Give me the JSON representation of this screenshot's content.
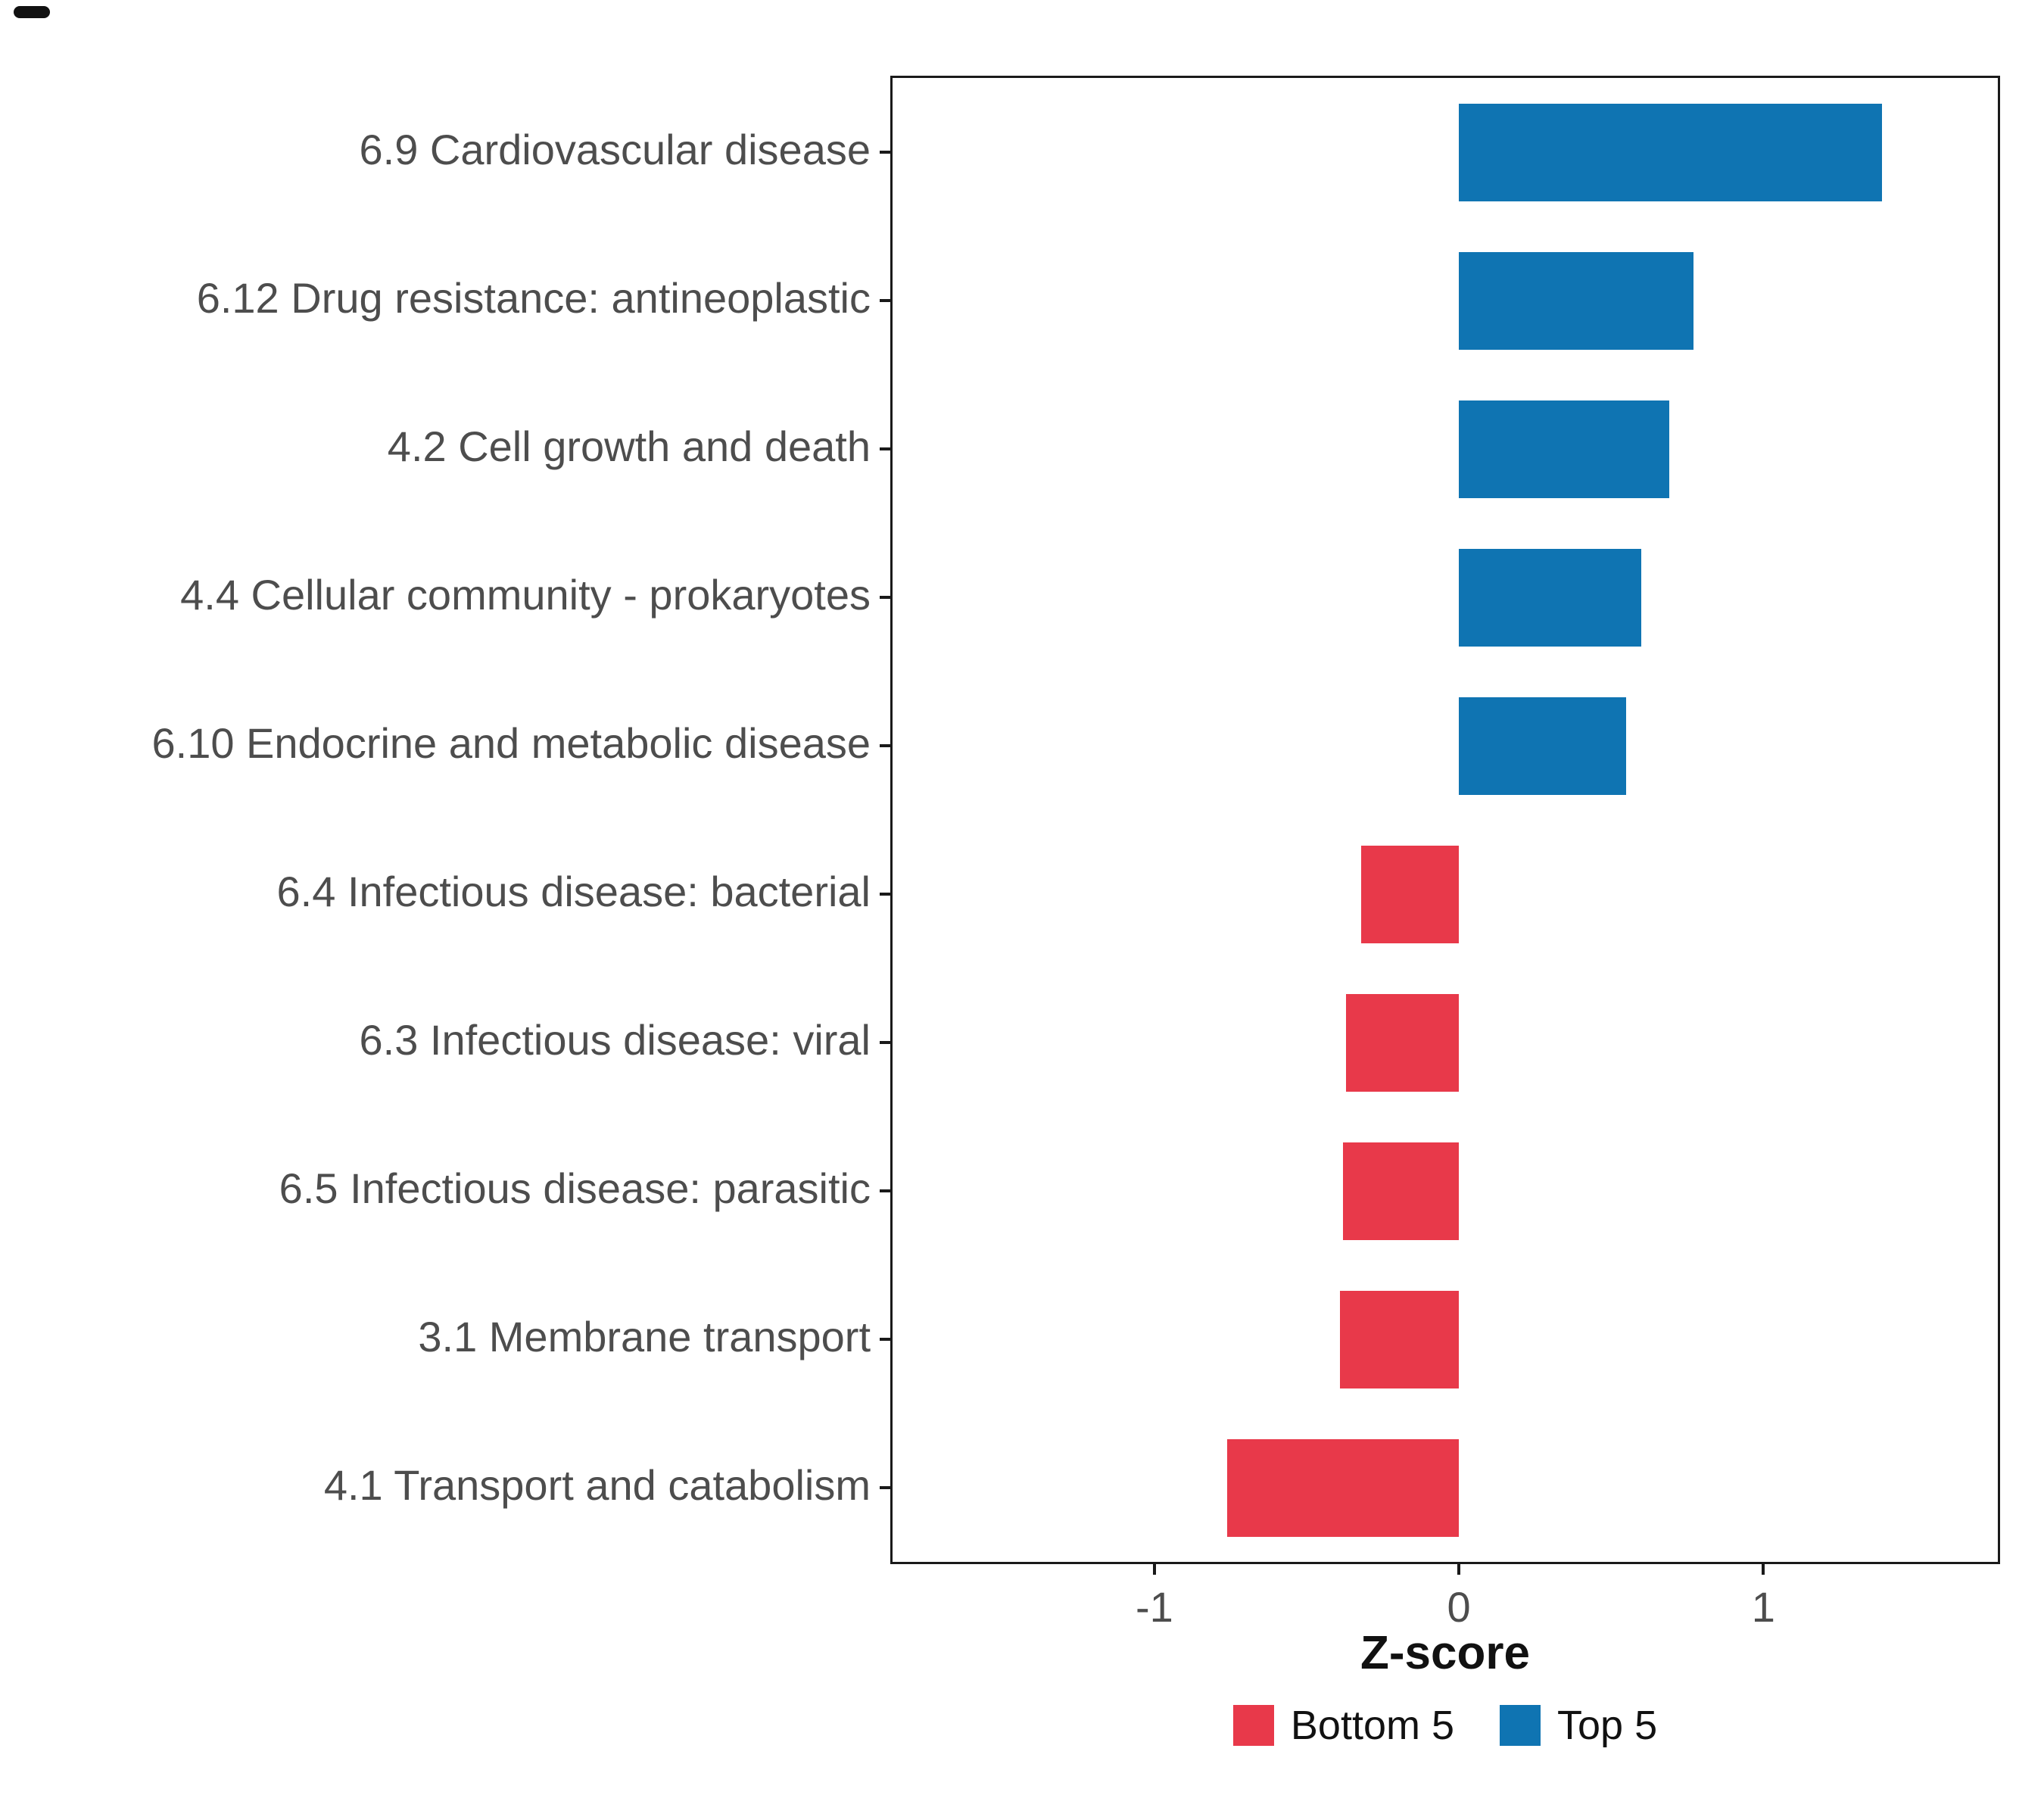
{
  "chart_data": {
    "type": "bar",
    "orientation": "horizontal",
    "title": "",
    "xlabel": "Z-score",
    "ylabel": "",
    "xlim": [
      -1.86,
      1.77
    ],
    "xticks": [
      "-1",
      "0",
      "1"
    ],
    "xtick_values": [
      -1,
      0,
      1
    ],
    "grid": false,
    "panel_border_color": "#1a1a1a",
    "axis_text_color": "#4d4d4d",
    "categories": [
      "6.9 Cardiovascular disease",
      "6.12 Drug resistance: antineoplastic",
      "4.2 Cell growth and death",
      "4.4 Cellular community - prokaryotes",
      "6.10 Endocrine and metabolic disease",
      "6.4 Infectious disease: bacterial",
      "6.3 Infectious disease: viral",
      "6.5 Infectious disease: parasitic",
      "3.1 Membrane transport",
      "4.1 Transport and catabolism"
    ],
    "values": [
      1.39,
      0.77,
      0.69,
      0.6,
      0.55,
      -0.32,
      -0.37,
      -0.38,
      -0.39,
      -0.76
    ],
    "bar_groups": [
      "Top 5",
      "Top 5",
      "Top 5",
      "Top 5",
      "Top 5",
      "Bottom 5",
      "Bottom 5",
      "Bottom 5",
      "Bottom 5",
      "Bottom 5"
    ],
    "colors": {
      "Top 5": "#0f74b2",
      "Bottom 5": "#e8394a"
    },
    "legend": {
      "position": "bottom",
      "entries": [
        {
          "label": "Bottom 5",
          "color": "#e8394a"
        },
        {
          "label": "Top 5",
          "color": "#0f74b2"
        }
      ]
    }
  }
}
